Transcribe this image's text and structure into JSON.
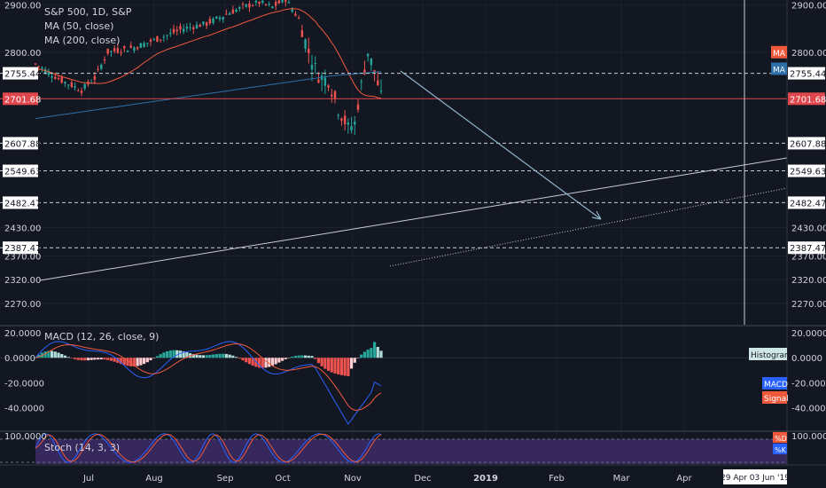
{
  "chart_data": {
    "type": "candlestick",
    "symbol_title": "S&P 500, 1D, S&P",
    "indicators": {
      "ma50_label": "MA (50, close)",
      "ma200_label": "MA (200, close)",
      "macd_label": "MACD (12, 26, close, 9)",
      "stoch_label": "Stoch (14, 3, 3)"
    },
    "price_axis": {
      "ticks": [
        "2900.00",
        "2800.00",
        "2755.44",
        "2701.68",
        "2607.88",
        "2549.63",
        "2482.47",
        "2430.00",
        "2387.47",
        "2370.00",
        "2320.00",
        "2270.00"
      ],
      "range": [
        2225,
        2910
      ]
    },
    "horizontal_levels": [
      {
        "value": 2755.44,
        "label": "2755.44",
        "style": "dashed"
      },
      {
        "value": 2701.68,
        "label": "2701.68",
        "style": "solid",
        "color": "#e0474c"
      },
      {
        "value": 2607.88,
        "label": "2607.88",
        "style": "dashed"
      },
      {
        "value": 2549.63,
        "label": "2549.63",
        "style": "dashed"
      },
      {
        "value": 2482.47,
        "label": "2482.47",
        "style": "dashed"
      },
      {
        "value": 2387.47,
        "label": "2387.47",
        "style": "dashed"
      }
    ],
    "right_badges": [
      {
        "label": "MA",
        "color": "#f05a3c",
        "value": 2800
      },
      {
        "label": "MA",
        "color": "#2e6fa8",
        "value": 2765
      }
    ],
    "macd_axis": {
      "ticks": [
        "20.0000",
        "0.0000",
        "-20.0000",
        "-40.0000"
      ],
      "range": [
        -58,
        25
      ]
    },
    "macd_badges": [
      {
        "label": "Histogram",
        "color": "#cfe6e6",
        "text_color": "#131722"
      },
      {
        "label": "MACD",
        "color": "#2962ff"
      },
      {
        "label": "Signal",
        "color": "#f05a3c"
      }
    ],
    "stoch_axis": {
      "ticks": [
        "100.0000"
      ]
    },
    "stoch_badges": [
      {
        "label": "%D",
        "color": "#f05a3c"
      },
      {
        "label": "%K",
        "color": "#2962ff"
      }
    ],
    "time_axis": {
      "labels": [
        "Jul",
        "Aug",
        "Sep",
        "Oct",
        "Nov",
        "Dec",
        "2019",
        "Feb",
        "Mar",
        "Apr"
      ],
      "marker_label": "29 Apr  03 Jun '19"
    },
    "colors": {
      "background": "#131722",
      "up": "#26a69a",
      "down": "#ef5350",
      "ma50": "#f05a3c",
      "ma200": "#2e6fa8",
      "macd_line": "#2962ff",
      "signal_line": "#f05a3c",
      "stoch_band": "#3b2a63"
    }
  }
}
